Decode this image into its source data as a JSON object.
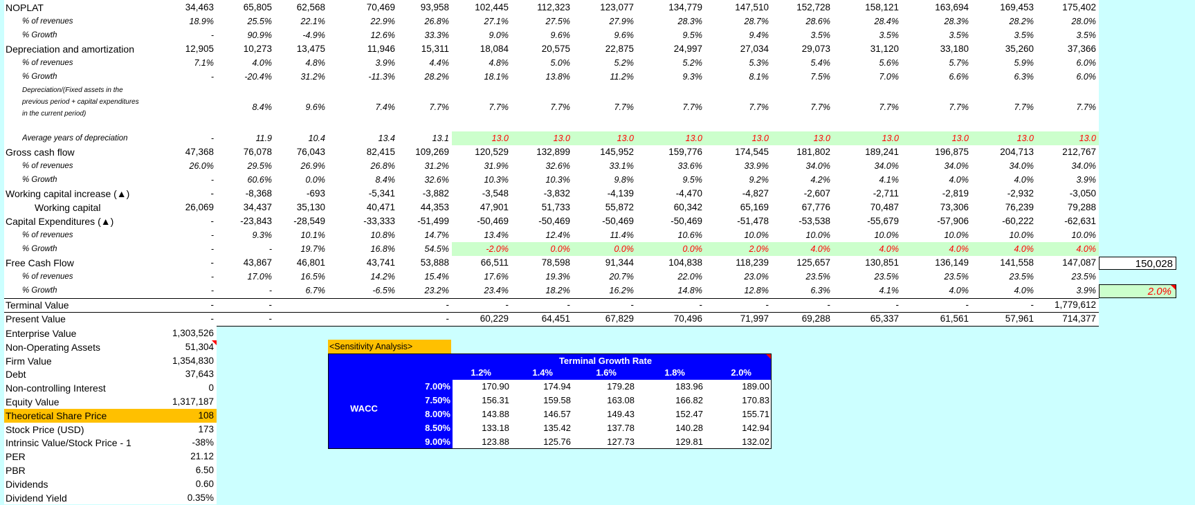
{
  "colors": {
    "background": "#ccffff",
    "input_green": "#ccffcc",
    "input_red": "#ff0000",
    "highlight_orange": "#ffc000",
    "table_blue": "#0000ff"
  },
  "rows": [
    {
      "label": "NOPLAT",
      "type": "main",
      "values": [
        "34,463",
        "65,805",
        "62,568",
        "70,469",
        "93,958",
        "102,445",
        "112,323",
        "123,077",
        "134,779",
        "147,510",
        "152,728",
        "158,121",
        "163,694",
        "169,453",
        "175,402"
      ]
    },
    {
      "label": "% of revenues",
      "type": "sub",
      "values": [
        "18.9%",
        "25.5%",
        "22.1%",
        "22.9%",
        "26.8%",
        "27.1%",
        "27.5%",
        "27.9%",
        "28.3%",
        "28.7%",
        "28.6%",
        "28.4%",
        "28.3%",
        "28.2%",
        "28.0%"
      ]
    },
    {
      "label": "% Growth",
      "type": "sub",
      "values": [
        "-",
        "90.9%",
        "-4.9%",
        "12.6%",
        "33.3%",
        "9.0%",
        "9.6%",
        "9.6%",
        "9.5%",
        "9.4%",
        "3.5%",
        "3.5%",
        "3.5%",
        "3.5%",
        "3.5%"
      ]
    },
    {
      "label": "Depreciation and amortization",
      "type": "main",
      "values": [
        "12,905",
        "10,273",
        "13,475",
        "11,946",
        "15,311",
        "18,084",
        "20,575",
        "22,875",
        "24,997",
        "27,034",
        "29,073",
        "31,120",
        "33,180",
        "35,260",
        "37,366"
      ]
    },
    {
      "label": "% of revenues",
      "type": "sub",
      "values": [
        "7.1%",
        "4.0%",
        "4.8%",
        "3.9%",
        "4.4%",
        "4.8%",
        "5.0%",
        "5.2%",
        "5.2%",
        "5.3%",
        "5.4%",
        "5.6%",
        "5.7%",
        "5.9%",
        "6.0%"
      ]
    },
    {
      "label": "% Growth",
      "type": "sub",
      "values": [
        "-",
        "-20.4%",
        "31.2%",
        "-11.3%",
        "28.2%",
        "18.1%",
        "13.8%",
        "11.2%",
        "9.3%",
        "8.1%",
        "7.5%",
        "7.0%",
        "6.6%",
        "6.3%",
        "6.0%"
      ]
    },
    {
      "label": "Depreciation/(Fixed assets in the previous period + capital expenditures in the current period)",
      "type": "tall",
      "values": [
        "",
        "8.4%",
        "9.6%",
        "7.4%",
        "7.7%",
        "7.7%",
        "7.7%",
        "7.7%",
        "7.7%",
        "7.7%",
        "7.7%",
        "7.7%",
        "7.7%",
        "7.7%",
        "7.7%"
      ]
    },
    {
      "label": "Average years of depreciation",
      "type": "sub",
      "green_from": 5,
      "values": [
        "-",
        "11.9",
        "10.4",
        "13.4",
        "13.1",
        "13.0",
        "13.0",
        "13.0",
        "13.0",
        "13.0",
        "13.0",
        "13.0",
        "13.0",
        "13.0",
        "13.0"
      ]
    },
    {
      "label": "Gross cash flow",
      "type": "main",
      "values": [
        "47,368",
        "76,078",
        "76,043",
        "82,415",
        "109,269",
        "120,529",
        "132,899",
        "145,952",
        "159,776",
        "174,545",
        "181,802",
        "189,241",
        "196,875",
        "204,713",
        "212,767"
      ]
    },
    {
      "label": "% of revenues",
      "type": "sub",
      "values": [
        "26.0%",
        "29.5%",
        "26.9%",
        "26.8%",
        "31.2%",
        "31.9%",
        "32.6%",
        "33.1%",
        "33.6%",
        "33.9%",
        "34.0%",
        "34.0%",
        "34.0%",
        "34.0%",
        "34.0%"
      ]
    },
    {
      "label": "% Growth",
      "type": "sub",
      "values": [
        "-",
        "60.6%",
        "0.0%",
        "8.4%",
        "32.6%",
        "10.3%",
        "10.3%",
        "9.8%",
        "9.5%",
        "9.2%",
        "4.2%",
        "4.1%",
        "4.0%",
        "4.0%",
        "3.9%"
      ]
    },
    {
      "label": "Working capital increase (▲)",
      "type": "main",
      "values": [
        "-",
        "-8,368",
        "-693",
        "-5,341",
        "-3,882",
        "-3,548",
        "-3,832",
        "-4,139",
        "-4,470",
        "-4,827",
        "-2,607",
        "-2,711",
        "-2,819",
        "-2,932",
        "-3,050"
      ]
    },
    {
      "label": "Working capital",
      "type": "indent",
      "values": [
        "26,069",
        "34,437",
        "35,130",
        "40,471",
        "44,353",
        "47,901",
        "51,733",
        "55,872",
        "60,342",
        "65,169",
        "67,776",
        "70,487",
        "73,306",
        "76,239",
        "79,288"
      ]
    },
    {
      "label": "Capital Expenditures (▲)",
      "type": "main",
      "values": [
        "-",
        "-23,843",
        "-28,549",
        "-33,333",
        "-51,499",
        "-50,469",
        "-50,469",
        "-50,469",
        "-50,469",
        "-51,478",
        "-53,538",
        "-55,679",
        "-57,906",
        "-60,222",
        "-62,631"
      ]
    },
    {
      "label": "% of revenues",
      "type": "sub",
      "values": [
        "-",
        "9.3%",
        "10.1%",
        "10.8%",
        "14.7%",
        "13.4%",
        "12.4%",
        "11.4%",
        "10.6%",
        "10.0%",
        "10.0%",
        "10.0%",
        "10.0%",
        "10.0%",
        "10.0%"
      ]
    },
    {
      "label": "% Growth",
      "type": "sub",
      "green_from": 5,
      "values": [
        "-",
        "-",
        "19.7%",
        "16.8%",
        "54.5%",
        "-2.0%",
        "0.0%",
        "0.0%",
        "0.0%",
        "2.0%",
        "4.0%",
        "4.0%",
        "4.0%",
        "4.0%",
        "4.0%"
      ]
    },
    {
      "label": "Free Cash Flow",
      "type": "main",
      "values": [
        "-",
        "43,867",
        "46,801",
        "43,741",
        "53,888",
        "66,511",
        "78,598",
        "91,344",
        "104,838",
        "118,239",
        "125,657",
        "130,851",
        "136,149",
        "141,558",
        "147,087"
      ]
    },
    {
      "label": "% of revenues",
      "type": "sub",
      "values": [
        "-",
        "17.0%",
        "16.5%",
        "14.2%",
        "15.4%",
        "17.6%",
        "19.3%",
        "20.7%",
        "22.0%",
        "23.0%",
        "23.5%",
        "23.5%",
        "23.5%",
        "23.5%",
        "23.5%"
      ]
    },
    {
      "label": "% Growth",
      "type": "sub",
      "values": [
        "-",
        "-",
        "6.7%",
        "-6.5%",
        "23.2%",
        "23.4%",
        "18.2%",
        "16.2%",
        "14.8%",
        "12.8%",
        "6.3%",
        "4.1%",
        "4.0%",
        "4.0%",
        "3.9%"
      ]
    },
    {
      "label": "Terminal Value",
      "type": "main",
      "values": [
        "-",
        "-",
        "",
        "",
        "-",
        "-",
        "-",
        "-",
        "-",
        "-",
        "-",
        "-",
        "-",
        "-",
        "1,779,612"
      ]
    },
    {
      "label": "Present Value",
      "type": "main",
      "values": [
        "-",
        "-",
        "",
        "",
        "-",
        "60,229",
        "64,451",
        "67,829",
        "70,496",
        "71,997",
        "69,288",
        "65,337",
        "61,561",
        "57,961",
        "714,377"
      ]
    }
  ],
  "terminal_fcf": "150,028",
  "terminal_growth": "2.0%",
  "valuation": [
    {
      "label": "Enterprise Value",
      "value": "1,303,526"
    },
    {
      "label": "Non-Operating Assets",
      "value": "51,304"
    },
    {
      "label": "Firm Value",
      "value": "1,354,830"
    },
    {
      "label": "Debt",
      "value": "37,643"
    },
    {
      "label": "Non-controlling Interest",
      "value": "0"
    },
    {
      "label": "Equity Value",
      "value": "1,317,187"
    },
    {
      "label": "Theoretical Share Price",
      "value": "108"
    },
    {
      "label": "Stock Price (USD)",
      "value": "173"
    },
    {
      "label": "Intrinsic Value/Stock Price - 1",
      "value": "-38%"
    },
    {
      "label": "PER",
      "value": "21.12"
    },
    {
      "label": "PBR",
      "value": "6.50"
    },
    {
      "label": "Dividends",
      "value": "0.60"
    },
    {
      "label": "Dividend Yield",
      "value": "0.35%"
    }
  ],
  "sensitivity": {
    "title": "<Sensitivity Analysis>",
    "col_header": "Terminal Growth Rate",
    "row_header": "WACC",
    "growth_rates": [
      "1.2%",
      "1.4%",
      "1.6%",
      "1.8%",
      "2.0%"
    ],
    "wacc": [
      "7.00%",
      "7.50%",
      "8.00%",
      "8.50%",
      "9.00%"
    ],
    "values": [
      [
        "170.90",
        "174.94",
        "179.28",
        "183.96",
        "189.00"
      ],
      [
        "156.31",
        "159.58",
        "163.08",
        "166.82",
        "170.83"
      ],
      [
        "143.88",
        "146.57",
        "149.43",
        "152.47",
        "155.71"
      ],
      [
        "133.18",
        "135.42",
        "137.78",
        "140.28",
        "142.94"
      ],
      [
        "123.88",
        "125.76",
        "127.73",
        "129.81",
        "132.02"
      ]
    ]
  }
}
